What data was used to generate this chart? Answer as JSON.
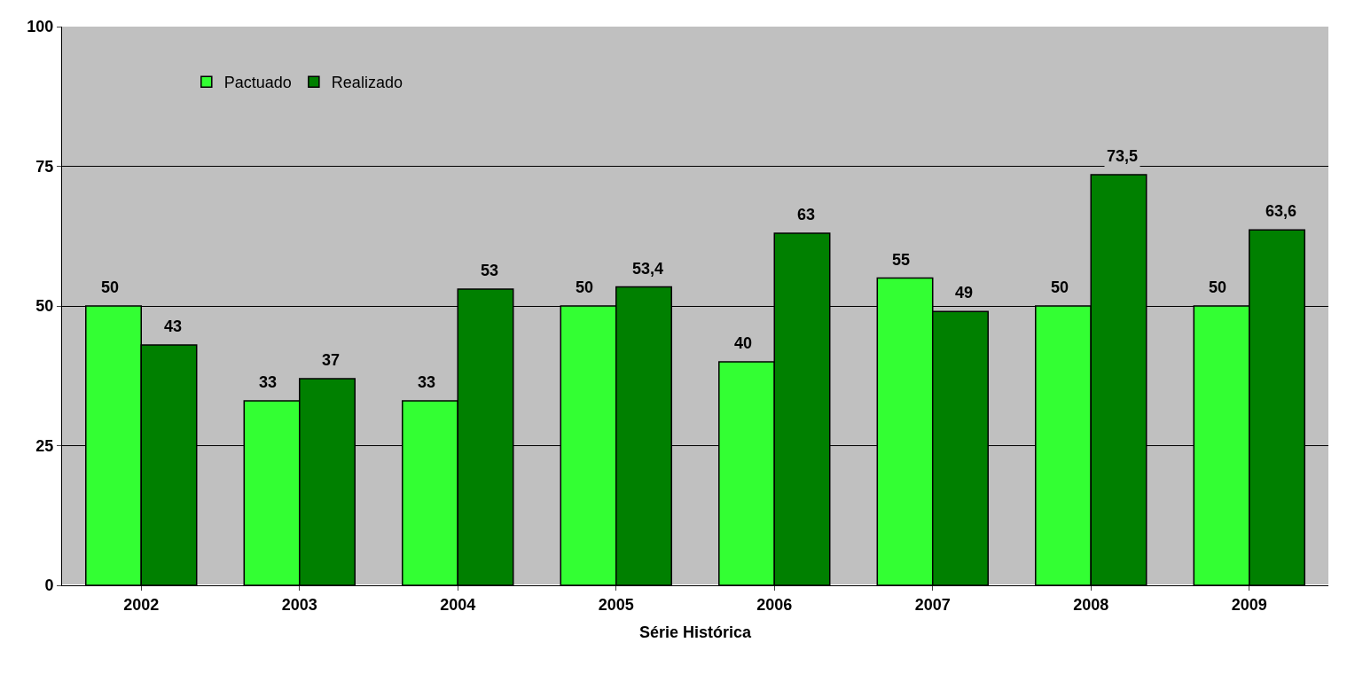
{
  "chart_data": {
    "type": "bar",
    "xlabel": "Série Histórica",
    "categories": [
      "2002",
      "2003",
      "2004",
      "2005",
      "2006",
      "2007",
      "2008",
      "2009"
    ],
    "series": [
      {
        "name": "Pactuado",
        "color": "#33ff33",
        "values": [
          50,
          33,
          33,
          50,
          40,
          55,
          50,
          50
        ],
        "value_labels": [
          "50",
          "33",
          "33",
          "50",
          "40",
          "55",
          "50",
          "50"
        ]
      },
      {
        "name": "Realizado",
        "color": "#008000",
        "values": [
          43,
          37,
          53,
          53.4,
          63,
          49,
          73.5,
          63.6
        ],
        "value_labels": [
          "43",
          "37",
          "53",
          "53,4",
          "63",
          "49",
          "73,5",
          "63,6"
        ]
      }
    ],
    "ylim": [
      0,
      100
    ],
    "yticks": [
      0,
      25,
      50,
      75,
      100
    ],
    "grid": "y",
    "legend": "top left"
  }
}
